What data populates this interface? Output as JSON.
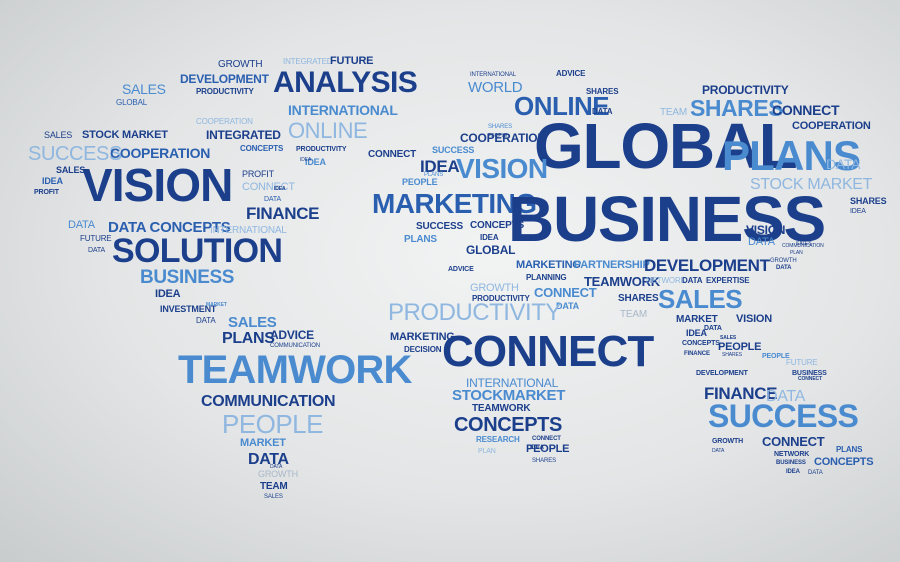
{
  "image": {
    "colors": {
      "dark": "#1c3f8c",
      "mid": "#2a5fb0",
      "light": "#4a8bd0",
      "pale": "#8fb7e0",
      "grey": "#a9b8c8",
      "background": "#e6e8e9"
    },
    "words": [
      "GROWTH",
      "DEVELOPMENT",
      "PRODUCTIVITY",
      "INTEGRATED",
      "FUTURE",
      "ANALYSIS",
      "SALES",
      "GLOBAL",
      "INTERNATIONAL",
      "COOPERATION",
      "ONLINE",
      "INTEGRATED",
      "CONCEPTS",
      "PRODUCTIVITY",
      "IDEA",
      "SALES",
      "STOCK MARKET",
      "SUCCESS",
      "COOPERATION",
      "SALES",
      "IDEA",
      "PROFIT",
      "VISION",
      "PROFIT",
      "CONNECT",
      "DATA",
      "FINANCE",
      "DATA",
      "DATA CONCEPTS",
      "INTERNATIONAL",
      "FUTURE",
      "SOLUTION",
      "DATA",
      "BUSINESS",
      "IDEA",
      "INVESTMENT",
      "DATA",
      "SALES",
      "PLANS",
      "ADVICE",
      "COMMUNICATION",
      "TEAMWORK",
      "COMMUNICATION",
      "PEOPLE",
      "MARKET",
      "DATA",
      "GROWTH",
      "TEAM",
      "SALES",
      "INTERNATIONAL",
      "ADVICE",
      "WORLD",
      "SHARES",
      "PRODUCTIVITY",
      "ONLINE",
      "DATA",
      "TEAM",
      "SHARES",
      "CONNECT",
      "SHARES",
      "COOPERATION",
      "COOPERATION",
      "GLOBAL",
      "PLANS",
      "CONNECT",
      "SUCCESS",
      "VISION",
      "DATA",
      "IDEA",
      "PEOPLE",
      "STOCK MARKET",
      "MARKETING",
      "SHARES",
      "IDEA",
      "BUSINESS",
      "SUCCESS",
      "PLANS",
      "CONCEPTS",
      "VISION",
      "IDEA",
      "DATA",
      "GLOBAL",
      "ADVICE",
      "MARKETING",
      "PARTNERSHIP",
      "DEVELOPMENT",
      "PLANNING",
      "TEAMWORK",
      "NETWORK",
      "DATA",
      "EXPERTISE",
      "GROWTH",
      "CONNECT",
      "SHARES",
      "SALES",
      "PRODUCTIVITY",
      "DATA",
      "PRODUCTIVITY",
      "TEAM",
      "MARKET",
      "VISION",
      "MARKETING",
      "CONNECT",
      "IDEA",
      "DATA",
      "DECISION",
      "CONCEPTS",
      "FINANCE",
      "PEOPLE",
      "SHARES",
      "PEOPLE",
      "FUTURE",
      "DEVELOPMENT",
      "BUSINESS",
      "INTERNATIONAL",
      "STOCKMARKET",
      "TEAMWORK",
      "FINANCE",
      "DATA",
      "CONCEPTS",
      "RESEARCH",
      "CONNECT",
      "SUCCESS",
      "IDEA",
      "PEOPLE",
      "PLAN",
      "SHARES",
      "CONNECT",
      "PLANS",
      "NETWORK",
      "BUSINESS",
      "CONCEPTS",
      "IDEA",
      "GROWTH",
      "DATA",
      "GROWTH",
      "COMMUNICATION",
      "DATA",
      "SALES",
      "PLAN",
      "SALES",
      "CONNECT",
      "PLANS",
      "IDEA",
      "IDEA",
      "MARKET",
      "DATA",
      "PEOPLE",
      "DATA"
    ]
  }
}
